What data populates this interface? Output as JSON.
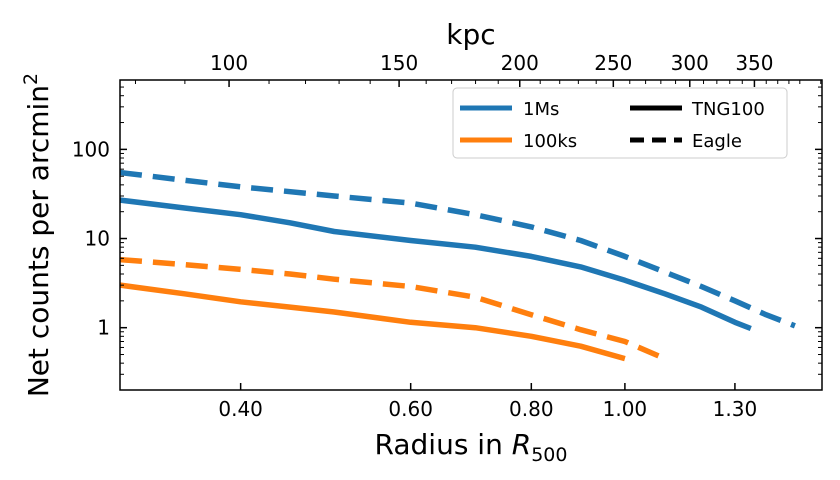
{
  "chart_data": {
    "type": "line",
    "x_scale": "log",
    "y_scale": "log",
    "xlim": [
      0.3,
      1.6
    ],
    "ylim": [
      0.2,
      600
    ],
    "xlabel": "Radius in ",
    "xlabel_symbol": "R",
    "xlabel_subscript": "500",
    "ylabel": "Net counts per arcmin",
    "ylabel_superscript": "2",
    "top_axis_label": "kpc",
    "x_ticks": [
      {
        "value": 0.4,
        "label": "0.40"
      },
      {
        "value": 0.6,
        "label": "0.60"
      },
      {
        "value": 0.8,
        "label": "0.80"
      },
      {
        "value": 1.0,
        "label": "1.00"
      },
      {
        "value": 1.3,
        "label": "1.30"
      }
    ],
    "top_ticks": [
      {
        "value": 100,
        "label": "100"
      },
      {
        "value": 150,
        "label": "150"
      },
      {
        "value": 200,
        "label": "200"
      },
      {
        "value": 250,
        "label": "250"
      },
      {
        "value": 300,
        "label": "300"
      },
      {
        "value": 350,
        "label": "350"
      }
    ],
    "kpc_per_r500": 257,
    "y_ticks": [
      {
        "value": 1,
        "label": "1"
      },
      {
        "value": 10,
        "label": "10"
      },
      {
        "value": 100,
        "label": "100"
      }
    ],
    "legend": {
      "placement": "top-right",
      "columns": [
        [
          {
            "label": "1Ms",
            "color": "#1f77b4",
            "style": "solid"
          },
          {
            "label": "100ks",
            "color": "#ff7f0e",
            "style": "solid"
          }
        ],
        [
          {
            "label": "TNG100",
            "color": "#000000",
            "style": "solid"
          },
          {
            "label": "Eagle",
            "color": "#000000",
            "style": "dashed"
          }
        ]
      ]
    },
    "series": [
      {
        "name": "1Ms TNG100",
        "color": "#1f77b4",
        "style": "solid",
        "x": [
          0.3,
          0.35,
          0.4,
          0.45,
          0.5,
          0.6,
          0.7,
          0.8,
          0.9,
          1.0,
          1.1,
          1.2,
          1.3,
          1.35
        ],
        "y": [
          27,
          22,
          18.5,
          15,
          12,
          9.5,
          8.0,
          6.3,
          4.8,
          3.4,
          2.4,
          1.7,
          1.15,
          0.98
        ]
      },
      {
        "name": "1Ms Eagle",
        "color": "#1f77b4",
        "style": "dashed",
        "x": [
          0.3,
          0.35,
          0.4,
          0.5,
          0.6,
          0.7,
          0.8,
          0.9,
          1.0,
          1.1,
          1.2,
          1.3,
          1.4,
          1.5
        ],
        "y": [
          55,
          45,
          38,
          30,
          25,
          18.5,
          13.5,
          9.5,
          6.3,
          4.2,
          2.9,
          2.0,
          1.4,
          1.05
        ]
      },
      {
        "name": "100ks TNG100",
        "color": "#ff7f0e",
        "style": "solid",
        "x": [
          0.3,
          0.35,
          0.4,
          0.45,
          0.5,
          0.6,
          0.7,
          0.8,
          0.9,
          1.0
        ],
        "y": [
          3.0,
          2.4,
          1.95,
          1.7,
          1.5,
          1.15,
          1.0,
          0.8,
          0.62,
          0.45
        ]
      },
      {
        "name": "100ks Eagle",
        "color": "#ff7f0e",
        "style": "dashed",
        "x": [
          0.3,
          0.35,
          0.4,
          0.45,
          0.5,
          0.6,
          0.7,
          0.8,
          0.9,
          1.0,
          1.1
        ],
        "y": [
          5.8,
          5.1,
          4.5,
          4.0,
          3.5,
          2.9,
          2.2,
          1.4,
          0.95,
          0.7,
          0.45
        ]
      }
    ]
  }
}
